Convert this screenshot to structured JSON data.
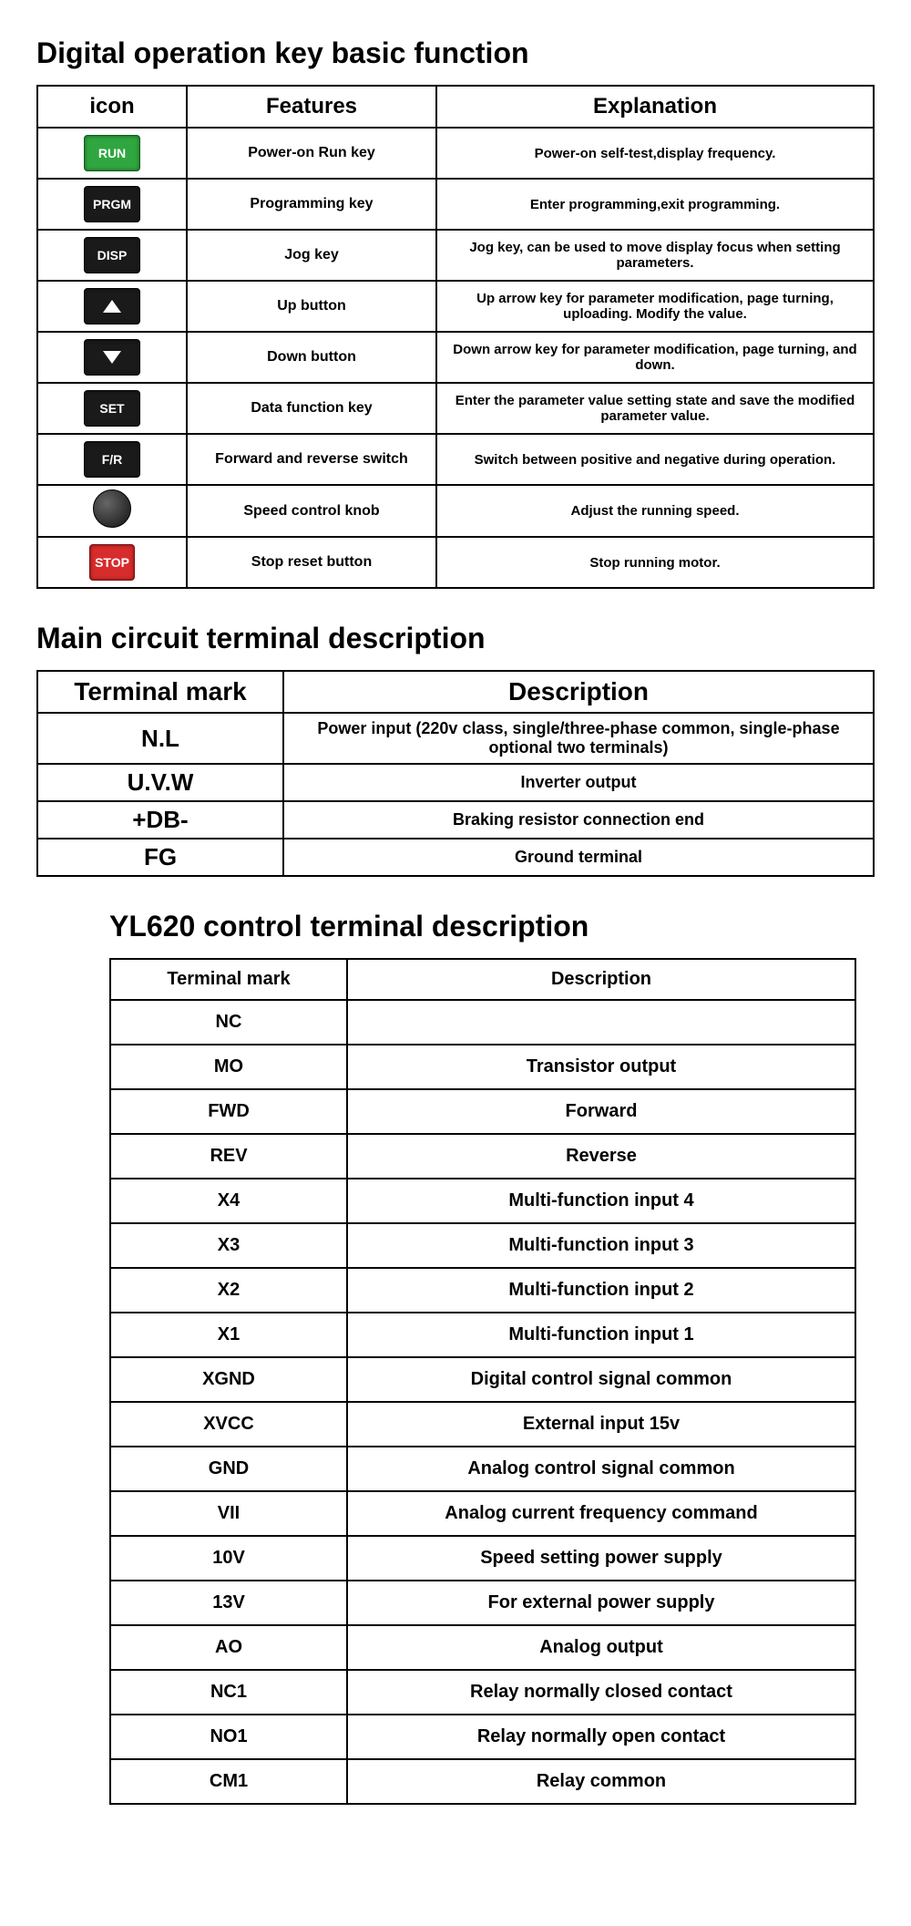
{
  "section1": {
    "title": "Digital operation key basic function",
    "headers": [
      "icon",
      "Features",
      "Explanation"
    ],
    "rows": [
      {
        "icon": "run",
        "icon_label": "RUN",
        "feature": "Power-on  Run key",
        "explanation": "Power-on self-test,display frequency."
      },
      {
        "icon": "black",
        "icon_label": "PRGM",
        "feature": "Programming  key",
        "explanation": "Enter programming,exit programming."
      },
      {
        "icon": "black",
        "icon_label": "DISP",
        "feature": "Jog  key",
        "explanation": "Jog key, can be used to move display focus when setting parameters."
      },
      {
        "icon": "up",
        "icon_label": "",
        "feature": "Up  button",
        "explanation": "Up arrow key for parameter modification, page turning, uploading. Modify the value."
      },
      {
        "icon": "down",
        "icon_label": "",
        "feature": "Down  button",
        "explanation": "Down arrow key for parameter modification, page turning, and down."
      },
      {
        "icon": "black",
        "icon_label": "SET",
        "feature": "Data function key",
        "explanation": "Enter the parameter value setting state and save the modified parameter value."
      },
      {
        "icon": "black",
        "icon_label": "F/R",
        "feature": "Forward and reverse switch",
        "explanation": "Switch between positive and negative during operation."
      },
      {
        "icon": "knob",
        "icon_label": "",
        "feature": "Speed control knob",
        "explanation": "Adjust the running speed."
      },
      {
        "icon": "stop",
        "icon_label": "STOP",
        "feature": "Stop reset button",
        "explanation": "Stop running motor."
      }
    ]
  },
  "section2": {
    "title": "Main circuit terminal description",
    "headers": [
      "Terminal mark",
      "Description"
    ],
    "rows": [
      {
        "mark": "N.L",
        "desc": "Power input (220v class, single/three-phase common, single-phase optional two terminals)"
      },
      {
        "mark": "U.V.W",
        "desc": "Inverter output"
      },
      {
        "mark": "+DB-",
        "desc": "Braking resistor connection end"
      },
      {
        "mark": "FG",
        "desc": "Ground terminal"
      }
    ]
  },
  "section3": {
    "title": "YL620 control terminal description",
    "headers": [
      "Terminal mark",
      "Description"
    ],
    "rows": [
      {
        "mark": "NC",
        "desc": ""
      },
      {
        "mark": "MO",
        "desc": "Transistor output"
      },
      {
        "mark": "FWD",
        "desc": "Forward"
      },
      {
        "mark": "REV",
        "desc": "Reverse"
      },
      {
        "mark": "X4",
        "desc": "Multi-function input 4"
      },
      {
        "mark": "X3",
        "desc": "Multi-function input 3"
      },
      {
        "mark": "X2",
        "desc": "Multi-function input 2"
      },
      {
        "mark": "X1",
        "desc": "Multi-function input 1"
      },
      {
        "mark": "XGND",
        "desc": "Digital control signal common"
      },
      {
        "mark": "XVCC",
        "desc": "External input 15v"
      },
      {
        "mark": "GND",
        "desc": "Analog control signal common"
      },
      {
        "mark": "VII",
        "desc": "Analog current frequency command"
      },
      {
        "mark": "10V",
        "desc": "Speed setting power supply"
      },
      {
        "mark": "13V",
        "desc": "For external power supply"
      },
      {
        "mark": "AO",
        "desc": "Analog output"
      },
      {
        "mark": "NC1",
        "desc": "Relay normally closed contact"
      },
      {
        "mark": "NO1",
        "desc": "Relay normally open contact"
      },
      {
        "mark": "CM1",
        "desc": "Relay common"
      }
    ]
  }
}
